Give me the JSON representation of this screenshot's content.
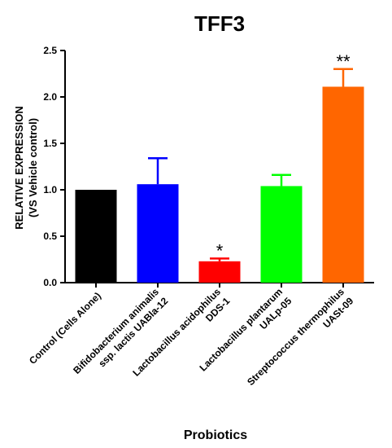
{
  "chart_data": {
    "type": "bar",
    "title": "TFF3",
    "xlabel": "Probiotics",
    "ylabel_lines": [
      "RELATIVE EXPRESSION",
      "(VS Vehicle control)"
    ],
    "ylim": [
      0,
      2.5
    ],
    "yticks": [
      0.0,
      0.5,
      1.0,
      1.5,
      2.0,
      2.5
    ],
    "ytick_labels": [
      "0.0",
      "0.5",
      "1.0",
      "1.5",
      "2.0",
      "2.5"
    ],
    "grid": false,
    "legend": "none",
    "categories": [
      [
        "Control (Cells Alone)"
      ],
      [
        "Bifidobacterium animalis",
        "ssp. lactis UABla-12"
      ],
      [
        "Lactobacillus acidophilus",
        "DDS-1"
      ],
      [
        "Lactobacillus plantarum",
        "UALp-05"
      ],
      [
        "Streptococcus thermophilus",
        "UASt-09"
      ]
    ],
    "values": [
      1.0,
      1.06,
      0.23,
      1.04,
      2.11
    ],
    "error_upper": [
      0.0,
      0.28,
      0.03,
      0.12,
      0.19
    ],
    "significance": [
      "",
      "",
      "*",
      "",
      "**"
    ],
    "colors": [
      "#000000",
      "#0000ff",
      "#ff0000",
      "#00ff00",
      "#ff6600"
    ]
  }
}
